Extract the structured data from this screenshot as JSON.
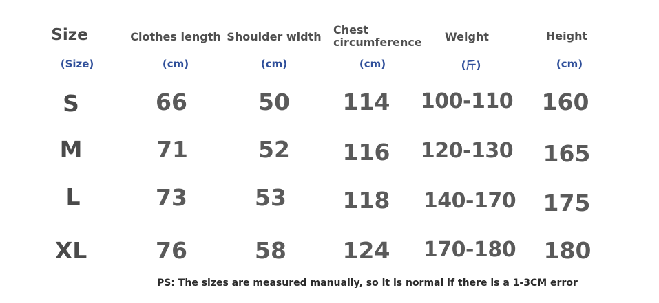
{
  "headers": {
    "size": "Size",
    "clothes_length": "Clothes length",
    "shoulder_width": "Shoulder width",
    "chest_line1": "Chest",
    "chest_line2": "circumference",
    "weight": "Weight",
    "height": "Height"
  },
  "units": {
    "size": "(Size)",
    "clothes_length": "(cm)",
    "shoulder_width": "(cm)",
    "chest": "(cm)",
    "weight": "(斤)",
    "height": "(cm)"
  },
  "rows": [
    {
      "size": "S",
      "clothes_length": "66",
      "shoulder_width": "50",
      "chest": "114",
      "weight": "100-110",
      "height": "160"
    },
    {
      "size": "M",
      "clothes_length": "71",
      "shoulder_width": "52",
      "chest": "116",
      "weight": "120-130",
      "height": "165"
    },
    {
      "size": "L",
      "clothes_length": "73",
      "shoulder_width": "53",
      "chest": "118",
      "weight": "140-170",
      "height": "175"
    },
    {
      "size": "XL",
      "clothes_length": "76",
      "shoulder_width": "58",
      "chest": "124",
      "weight": "170-180",
      "height": "180"
    }
  ],
  "note": "PS: The sizes are measured manually, so it is normal if there is a 1-3CM error"
}
